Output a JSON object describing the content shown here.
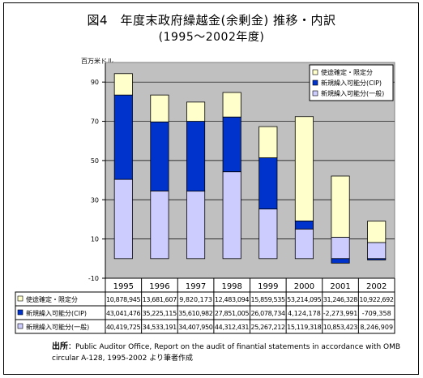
{
  "title": "図4　年度末政府繰越金(余剰金) 推移・内訳",
  "subtitle": "(1995〜2002年度)",
  "unit": "百万米ドル",
  "source_label": "出所",
  "source_text": "：Public Auditor Office, Report on the audit of finantial statements in accordance with OMB circular A-128, 1995-2002 より筆者作成",
  "colors": {
    "plot_bg": "#c0c0c0",
    "general": "#ccccff",
    "cip": "#0033cc",
    "restricted": "#ffffcc"
  },
  "chart_data": {
    "type": "bar",
    "stacked": true,
    "categories": [
      "1995",
      "1996",
      "1997",
      "1998",
      "1999",
      "2000",
      "2001",
      "2002"
    ],
    "ylim": [
      -10,
      100
    ],
    "yticks": [
      -10,
      10,
      30,
      50,
      70,
      90
    ],
    "grid": true,
    "legend_position": "top-right",
    "series": [
      {
        "name": "新規繰入可能分(一般)",
        "key": "general",
        "values": [
          40.4,
          34.5,
          34.4,
          44.3,
          25.3,
          15.1,
          10.9,
          8.2
        ],
        "labels": [
          "40,419,725",
          "34,533,191",
          "34,407,950",
          "44,312,431",
          "25,267,212",
          "15,119,318",
          "10,853,423",
          "8,246,909"
        ]
      },
      {
        "name": "新規繰入可能分(CIP)",
        "key": "cip",
        "values": [
          43.0,
          35.2,
          35.6,
          27.9,
          26.1,
          4.1,
          -2.3,
          -0.7
        ],
        "labels": [
          "43,041,476",
          "35,225,115",
          "35,610,982",
          "27,851,005",
          "26,078,734",
          "4,124,178",
          "-2,273,991",
          "-709,358"
        ]
      },
      {
        "name": "使途確定・限定分",
        "key": "restricted",
        "values": [
          10.9,
          13.7,
          9.8,
          12.5,
          15.9,
          53.2,
          31.2,
          10.9
        ],
        "labels": [
          "10,878,945",
          "13,681,607",
          "9,820,173",
          "12,483,094",
          "15,859,535",
          "53,214,095",
          "31,246,328",
          "10,922,692"
        ]
      }
    ]
  }
}
